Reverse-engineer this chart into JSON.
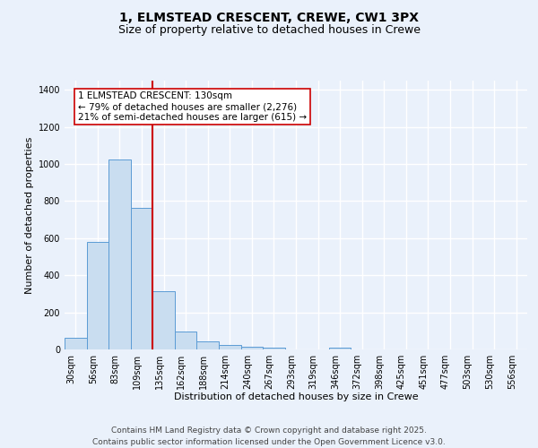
{
  "title_line1": "1, ELMSTEAD CRESCENT, CREWE, CW1 3PX",
  "title_line2": "Size of property relative to detached houses in Crewe",
  "xlabel": "Distribution of detached houses by size in Crewe",
  "ylabel": "Number of detached properties",
  "bar_labels": [
    "30sqm",
    "56sqm",
    "83sqm",
    "109sqm",
    "135sqm",
    "162sqm",
    "188sqm",
    "214sqm",
    "240sqm",
    "267sqm",
    "293sqm",
    "319sqm",
    "346sqm",
    "372sqm",
    "398sqm",
    "425sqm",
    "451sqm",
    "477sqm",
    "503sqm",
    "530sqm",
    "556sqm"
  ],
  "bar_values": [
    65,
    580,
    1025,
    765,
    315,
    95,
    45,
    22,
    15,
    10,
    0,
    0,
    12,
    0,
    0,
    0,
    0,
    0,
    0,
    0,
    0
  ],
  "bar_color": "#c9ddf0",
  "bar_edge_color": "#5b9bd5",
  "vline_color": "#cc0000",
  "annotation_text": "1 ELMSTEAD CRESCENT: 130sqm\n← 79% of detached houses are smaller (2,276)\n21% of semi-detached houses are larger (615) →",
  "annotation_box_color": "#ffffff",
  "annotation_box_edge": "#cc0000",
  "ylim": [
    0,
    1450
  ],
  "yticks": [
    0,
    200,
    400,
    600,
    800,
    1000,
    1200,
    1400
  ],
  "background_color": "#eaf1fb",
  "plot_bg_color": "#eaf1fb",
  "grid_color": "#ffffff",
  "footer_line1": "Contains HM Land Registry data © Crown copyright and database right 2025.",
  "footer_line2": "Contains public sector information licensed under the Open Government Licence v3.0.",
  "title_fontsize": 10,
  "subtitle_fontsize": 9,
  "label_fontsize": 8,
  "tick_fontsize": 7,
  "annotation_fontsize": 7.5,
  "footer_fontsize": 6.5
}
